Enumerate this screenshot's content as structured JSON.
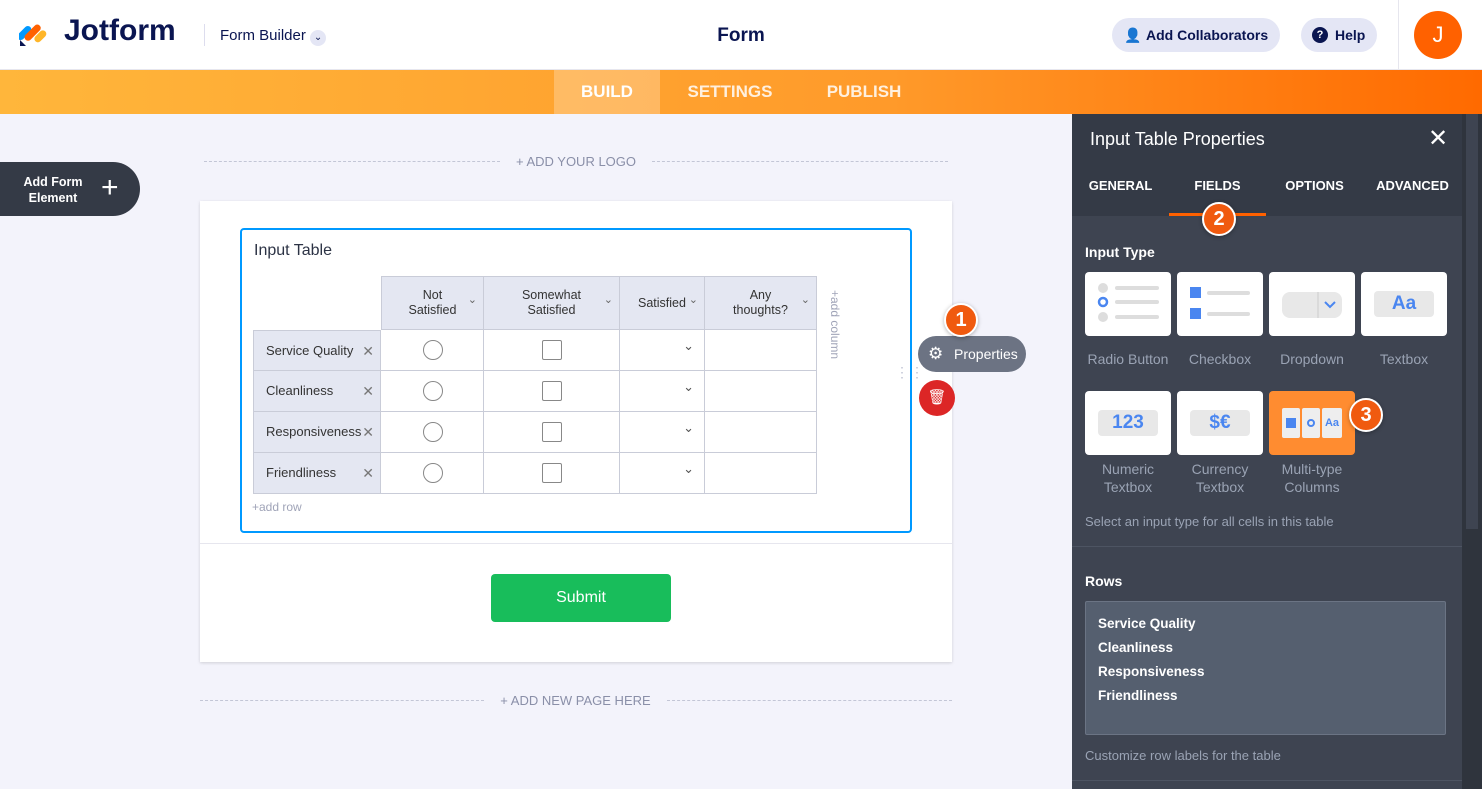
{
  "header": {
    "brand": "Jotform",
    "builder_label": "Form Builder",
    "title": "Form",
    "add_collaborators": "Add Collaborators",
    "help": "Help",
    "avatar_initial": "J"
  },
  "nav": {
    "tabs": [
      "BUILD",
      "SETTINGS",
      "PUBLISH"
    ],
    "active": "BUILD"
  },
  "canvas": {
    "add_logo": "+ ADD YOUR LOGO",
    "add_form_element": "Add Form Element",
    "add_new_page": "+ ADD NEW PAGE HERE",
    "submit": "Submit",
    "properties": "Properties"
  },
  "input_table": {
    "title": "Input Table",
    "columns": [
      "Not Satisfied",
      "Somewhat Satisfied",
      "Satisfied",
      "Any thoughts?"
    ],
    "rows": [
      "Service Quality",
      "Cleanliness",
      "Responsiveness",
      "Friendliness"
    ],
    "add_row": "+add row",
    "add_column": "+add column"
  },
  "panel": {
    "title": "Input Table Properties",
    "tabs": [
      "GENERAL",
      "FIELDS",
      "OPTIONS",
      "ADVANCED"
    ],
    "active_tab": "FIELDS",
    "input_type_label": "Input Type",
    "input_types": [
      {
        "label": "Radio Button"
      },
      {
        "label": "Checkbox"
      },
      {
        "label": "Dropdown"
      },
      {
        "label": "Textbox",
        "glyph": "Aa"
      },
      {
        "label": "Numeric Textbox",
        "glyph": "123"
      },
      {
        "label": "Currency Textbox",
        "glyph": "$€"
      },
      {
        "label": "Multi-type Columns",
        "glyph": "Aa",
        "selected": true
      }
    ],
    "input_type_help": "Select an input type for all cells in this table",
    "rows_label": "Rows",
    "rows_value": "Service Quality\nCleanliness\nResponsiveness\nFriendliness",
    "rows_help": "Customize row labels for the table"
  },
  "badges": [
    "1",
    "2",
    "3"
  ],
  "colors": {
    "accent": "#ff6100",
    "panel": "#3e4451",
    "submit": "#18bd5b",
    "selection": "#0099ff"
  }
}
